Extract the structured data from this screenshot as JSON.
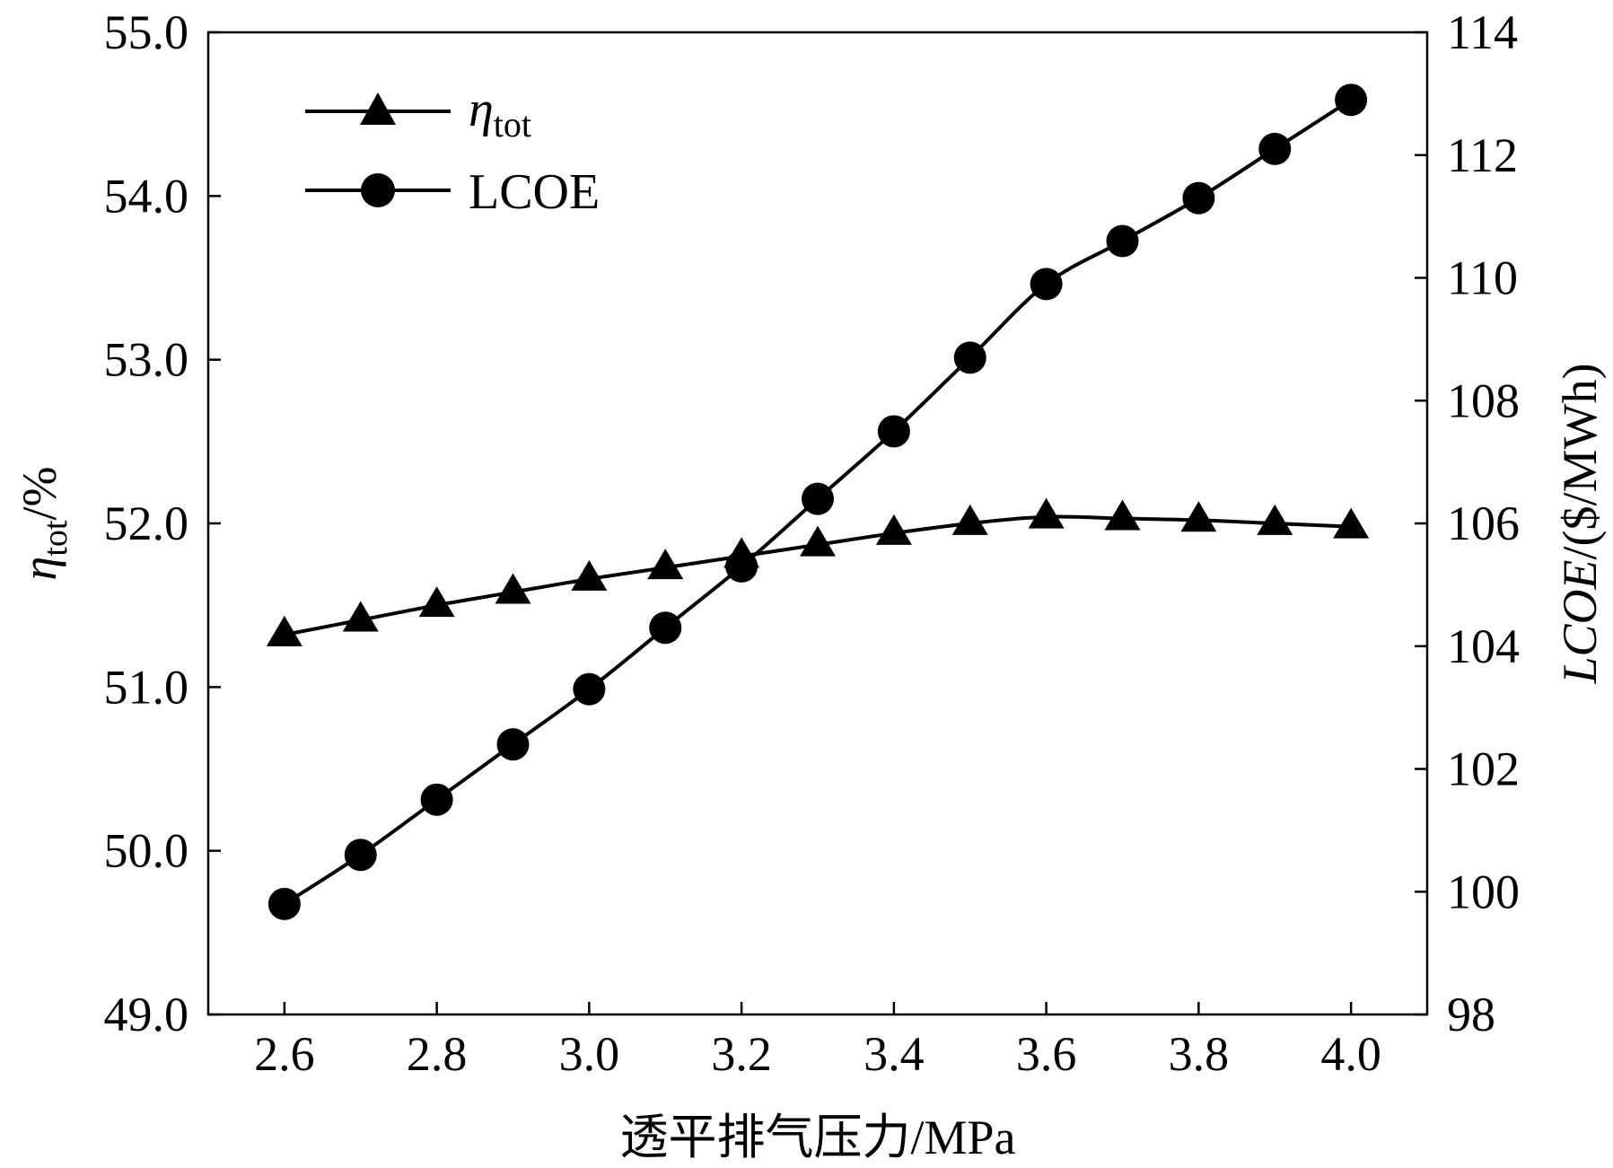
{
  "chart_data": {
    "type": "line",
    "title": "",
    "xlabel": "透平排气压力/MPa",
    "ylabel_left": {
      "symbol": "η",
      "subscript": "tot",
      "suffix": "/%"
    },
    "ylabel_right": {
      "italic": "LCOE",
      "rest": "/($/MWh)"
    },
    "x": [
      2.6,
      2.7,
      2.8,
      2.9,
      3.0,
      3.1,
      3.2,
      3.3,
      3.4,
      3.5,
      3.6,
      3.7,
      3.8,
      3.9,
      4.0
    ],
    "xlim": [
      2.5,
      4.1
    ],
    "x_ticks": [
      2.6,
      2.8,
      3.0,
      3.2,
      3.4,
      3.6,
      3.8,
      4.0
    ],
    "x_tick_labels": [
      "2.6",
      "2.8",
      "3.0",
      "3.2",
      "3.4",
      "3.6",
      "3.8",
      "4.0"
    ],
    "ylim_left": [
      49.0,
      55.0
    ],
    "y_left_ticks": [
      49.0,
      50.0,
      51.0,
      52.0,
      53.0,
      54.0,
      55.0
    ],
    "y_left_tick_labels": [
      "49.0",
      "50.0",
      "51.0",
      "52.0",
      "53.0",
      "54.0",
      "55.0"
    ],
    "ylim_right": [
      98,
      114
    ],
    "y_right_ticks": [
      98,
      100,
      102,
      104,
      106,
      108,
      110,
      112,
      114
    ],
    "y_right_tick_labels": [
      "98",
      "100",
      "102",
      "104",
      "106",
      "108",
      "110",
      "112",
      "114"
    ],
    "series": [
      {
        "name": "η_tot",
        "legend_symbol": "η",
        "legend_subscript": "tot",
        "axis": "left",
        "marker": "triangle",
        "values": [
          51.32,
          51.41,
          51.5,
          51.58,
          51.66,
          51.73,
          51.8,
          51.87,
          51.94,
          52.0,
          52.04,
          52.03,
          52.02,
          52.0,
          51.98
        ]
      },
      {
        "name": "LCOE",
        "legend_label": "LCOE",
        "axis": "right",
        "marker": "circle",
        "values": [
          99.8,
          100.6,
          101.5,
          102.4,
          103.3,
          104.3,
          105.3,
          106.4,
          107.5,
          108.7,
          109.9,
          110.6,
          111.3,
          112.1,
          112.9
        ]
      }
    ],
    "legend_position": "top-left",
    "grid": false
  },
  "colors": {
    "line": "#000000",
    "background": "#ffffff"
  }
}
